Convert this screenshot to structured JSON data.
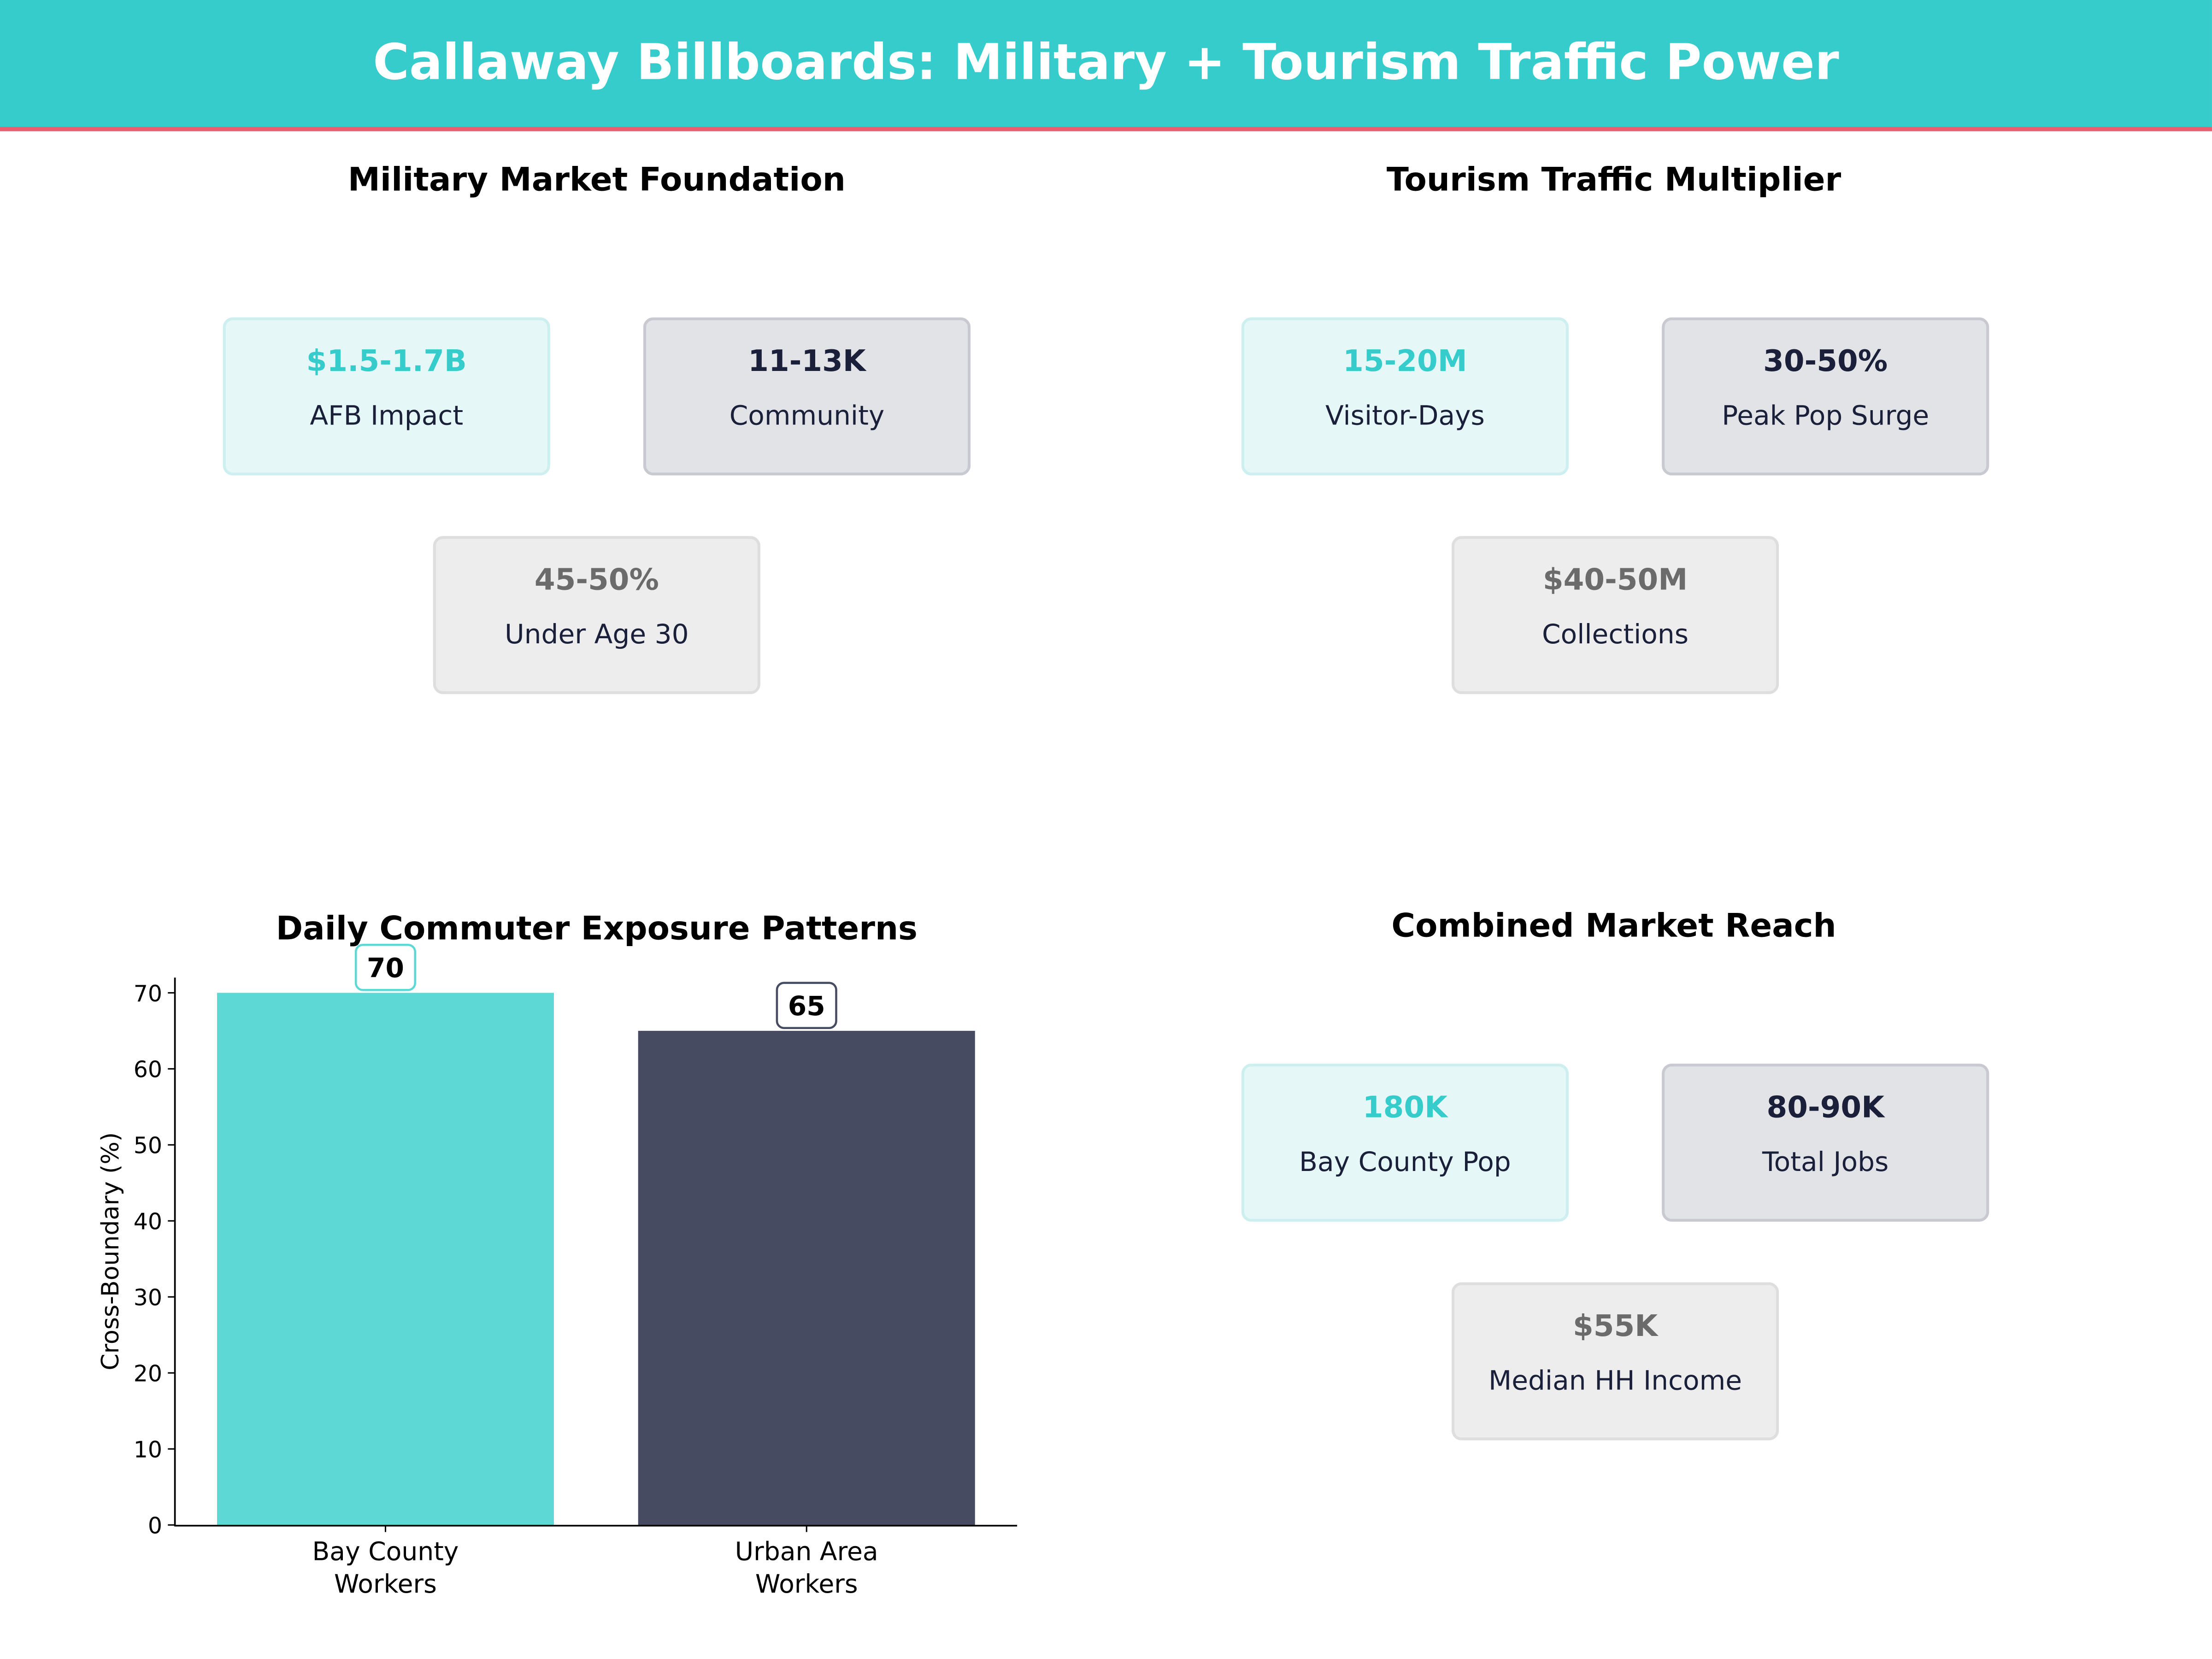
{
  "title": "Callaway Billboards: Military + Tourism Traffic Power",
  "colors": {
    "header": "#36CCCC",
    "accent_line": "#E8606F",
    "teal": "#5DD8D4",
    "navy": "#464B61"
  },
  "panels": {
    "military": {
      "title": "Military Market Foundation",
      "cards": [
        {
          "value": "$1.5-1.7B",
          "label": "AFB Impact"
        },
        {
          "value": "11-13K",
          "label": "Community"
        },
        {
          "value": "45-50%",
          "label": "Under Age 30"
        }
      ]
    },
    "tourism": {
      "title": "Tourism Traffic Multiplier",
      "cards": [
        {
          "value": "15-20M",
          "label": "Visitor-Days"
        },
        {
          "value": "30-50%",
          "label": "Peak Pop Surge"
        },
        {
          "value": "$40-50M",
          "label": "Collections"
        }
      ]
    },
    "combined": {
      "title": "Combined Market Reach",
      "cards": [
        {
          "value": "180K",
          "label": "Bay County Pop"
        },
        {
          "value": "80-90K",
          "label": "Total Jobs"
        },
        {
          "value": "$55K",
          "label": "Median HH Income"
        }
      ]
    }
  },
  "chart_data": {
    "type": "bar",
    "title": "Daily Commuter Exposure Patterns",
    "categories": [
      "Bay County Workers",
      "Urban Area Workers"
    ],
    "category_lines": [
      [
        "Bay County",
        "Workers"
      ],
      [
        "Urban Area",
        "Workers"
      ]
    ],
    "values": [
      70,
      65
    ],
    "data_labels": [
      "70",
      "65"
    ],
    "bar_colors": [
      "#5DD8D4",
      "#464B61"
    ],
    "xlabel": "",
    "ylabel": "Cross-Boundary (%)",
    "ylim": [
      0,
      72
    ],
    "yticks": [
      0,
      10,
      20,
      30,
      40,
      50,
      60,
      70
    ],
    "grid": false
  }
}
